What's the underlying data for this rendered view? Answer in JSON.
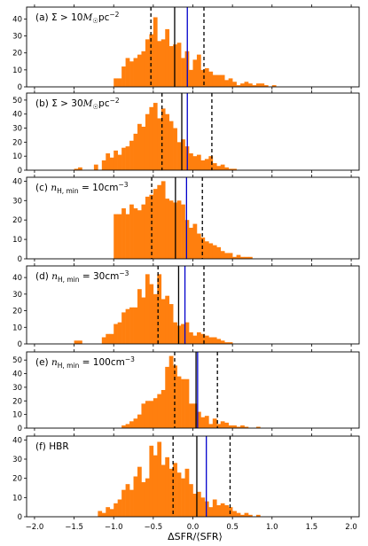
{
  "figure": {
    "xlabel": "ΔSFR/⟨SFR⟩",
    "x_ticks": [
      -2.0,
      -1.5,
      -1.0,
      -0.5,
      0.0,
      0.5,
      1.0,
      1.5,
      2.0
    ],
    "x_tick_labels": [
      "−2.0",
      "−1.5",
      "−1.0",
      "−0.5",
      "0.0",
      "0.5",
      "1.0",
      "1.5",
      "2.0"
    ]
  },
  "colors": {
    "bars": "#ff7f0e",
    "median": "#000000",
    "mean": "#0000cc",
    "quantiles": "#000000"
  },
  "chart_data": [
    {
      "type": "bar",
      "label": "(a) Σ > 10M☉pc⁻²",
      "label_parts": [
        [
          "(a) Σ > 10",
          ""
        ],
        [
          "M",
          "i"
        ],
        [
          "☉",
          "sub"
        ],
        [
          "pc",
          ""
        ],
        [
          "−2",
          "sup"
        ]
      ],
      "xlim": [
        -2.1,
        2.1
      ],
      "ylim": [
        0,
        47
      ],
      "yticks": [
        0,
        10,
        20,
        30,
        40
      ],
      "bin_start": -1.0,
      "bin_width": 0.05,
      "values": [
        5,
        5,
        12,
        17,
        15,
        17,
        19,
        21,
        28,
        31,
        41,
        27,
        28,
        34,
        24,
        25,
        26,
        17,
        21,
        10,
        16,
        19,
        10,
        11,
        9,
        7,
        7,
        7,
        4,
        5,
        3,
        1,
        2,
        3,
        2,
        1,
        2,
        2,
        1,
        0,
        1
      ],
      "vlines": {
        "p16": -0.53,
        "median": -0.23,
        "mean": -0.07,
        "p84": 0.14
      }
    },
    {
      "type": "bar",
      "label": "(b) Σ > 30M☉pc⁻²",
      "label_parts": [
        [
          "(b) Σ > 30",
          ""
        ],
        [
          "M",
          "i"
        ],
        [
          "☉",
          "sub"
        ],
        [
          "pc",
          ""
        ],
        [
          "−2",
          "sup"
        ]
      ],
      "xlim": [
        -2.1,
        2.1
      ],
      "ylim": [
        0,
        55
      ],
      "yticks": [
        0,
        10,
        20,
        30,
        40,
        50
      ],
      "bin_start": -1.5,
      "bin_width": 0.05,
      "values": [
        1,
        2,
        0,
        0,
        0,
        4,
        0,
        7,
        12,
        9,
        14,
        11,
        16,
        17,
        21,
        26,
        33,
        31,
        40,
        45,
        48,
        37,
        44,
        40,
        35,
        30,
        20,
        22,
        17,
        12,
        10,
        11,
        7,
        8,
        10,
        5,
        3,
        4,
        2,
        1,
        1
      ],
      "vlines": {
        "p16": -0.39,
        "median": -0.14,
        "mean": -0.07,
        "p84": 0.24
      }
    },
    {
      "type": "bar",
      "label": "(c) nH,min = 10cm⁻³",
      "label_parts": [
        [
          "(c) ",
          ""
        ],
        [
          "n",
          "i"
        ],
        [
          "H, min",
          "sub"
        ],
        [
          " = 10cm",
          ""
        ],
        [
          "−3",
          "sup"
        ]
      ],
      "xlim": [
        -2.1,
        2.1
      ],
      "ylim": [
        0,
        42
      ],
      "yticks": [
        0,
        10,
        20,
        30,
        40
      ],
      "bin_start": -1.0,
      "bin_width": 0.05,
      "values": [
        23,
        23,
        26,
        23,
        28,
        26,
        25,
        28,
        32,
        33,
        36,
        38,
        40,
        31,
        30,
        29,
        30,
        28,
        20,
        16,
        18,
        13,
        11,
        9,
        8,
        7,
        6,
        4,
        3,
        3,
        1,
        2,
        1,
        1,
        1
      ],
      "vlines": {
        "p16": -0.52,
        "median": -0.22,
        "mean": -0.08,
        "p84": 0.12
      }
    },
    {
      "type": "bar",
      "label": "(d) nH,min = 30cm⁻³",
      "label_parts": [
        [
          "(d) ",
          ""
        ],
        [
          "n",
          "i"
        ],
        [
          "H, min",
          "sub"
        ],
        [
          " = 30cm",
          ""
        ],
        [
          "−3",
          "sup"
        ]
      ],
      "xlim": [
        -2.1,
        2.1
      ],
      "ylim": [
        0,
        47
      ],
      "yticks": [
        0,
        10,
        20,
        30,
        40
      ],
      "bin_start": -1.5,
      "bin_width": 0.05,
      "values": [
        2,
        2,
        0,
        0,
        0,
        0,
        0,
        4,
        6,
        6,
        12,
        13,
        19,
        21,
        22,
        22,
        33,
        28,
        42,
        36,
        30,
        42,
        27,
        29,
        24,
        13,
        11,
        12,
        13,
        7,
        5,
        7,
        6,
        5,
        4,
        4,
        3,
        2,
        1,
        1,
        0
      ],
      "vlines": {
        "p16": -0.44,
        "median": -0.18,
        "mean": -0.1,
        "p84": 0.14
      }
    },
    {
      "type": "bar",
      "label": "(e) nH,min = 100cm⁻³",
      "label_parts": [
        [
          "(e) ",
          ""
        ],
        [
          "n",
          "i"
        ],
        [
          "H, min",
          "sub"
        ],
        [
          " = 100cm",
          ""
        ],
        [
          "−3",
          "sup"
        ]
      ],
      "xlim": [
        -2.1,
        2.1
      ],
      "ylim": [
        0,
        56
      ],
      "yticks": [
        0,
        10,
        20,
        30,
        40,
        50
      ],
      "bin_start": -0.9,
      "bin_width": 0.05,
      "values": [
        2,
        3,
        5,
        7,
        10,
        18,
        20,
        20,
        22,
        25,
        28,
        45,
        53,
        46,
        38,
        36,
        36,
        18,
        18,
        12,
        8,
        9,
        3,
        7,
        3,
        5,
        4,
        2,
        2,
        1,
        2,
        1,
        0,
        0,
        1
      ],
      "vlines": {
        "p16": -0.23,
        "median": 0.04,
        "mean": 0.06,
        "p84": 0.31
      }
    },
    {
      "type": "bar",
      "label": "(f) HBR",
      "label_parts": [
        [
          "(f) HBR",
          ""
        ]
      ],
      "xlim": [
        -2.1,
        2.1
      ],
      "ylim": [
        0,
        42
      ],
      "yticks": [
        0,
        10,
        20,
        30,
        40
      ],
      "bin_start": -1.2,
      "bin_width": 0.05,
      "values": [
        3,
        2,
        5,
        4,
        7,
        9,
        14,
        17,
        14,
        21,
        26,
        18,
        20,
        37,
        32,
        39,
        27,
        31,
        25,
        28,
        23,
        20,
        25,
        17,
        12,
        13,
        10,
        8,
        5,
        9,
        6,
        7,
        6,
        5,
        3,
        2,
        1,
        2,
        1,
        0,
        1
      ],
      "vlines": {
        "p16": -0.25,
        "median": 0.05,
        "mean": 0.17,
        "p84": 0.47
      }
    }
  ]
}
